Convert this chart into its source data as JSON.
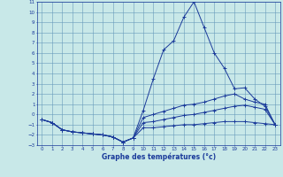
{
  "background_color": "#c8e8e8",
  "grid_color": "#6699bb",
  "line_color": "#1a3a9a",
  "xlabel": "Graphe des températures (°c)",
  "xlabel_color": "#1a3a9a",
  "xlim": [
    -0.5,
    23.5
  ],
  "ylim": [
    -3,
    11
  ],
  "xticks": [
    0,
    1,
    2,
    3,
    4,
    5,
    6,
    7,
    8,
    9,
    10,
    11,
    12,
    13,
    14,
    15,
    16,
    17,
    18,
    19,
    20,
    21,
    22,
    23
  ],
  "yticks": [
    -3,
    -2,
    -1,
    0,
    1,
    2,
    3,
    4,
    5,
    6,
    7,
    8,
    9,
    10,
    11
  ],
  "series": [
    {
      "x": [
        0,
        1,
        2,
        3,
        4,
        5,
        6,
        7,
        8,
        9,
        10,
        11,
        12,
        13,
        14,
        15,
        16,
        17,
        18,
        19,
        20,
        21,
        22,
        23
      ],
      "y": [
        -0.5,
        -0.8,
        -1.5,
        -1.7,
        -1.8,
        -1.9,
        -2.0,
        -2.2,
        -2.7,
        -2.3,
        0.4,
        3.5,
        6.3,
        7.2,
        9.5,
        11.0,
        8.5,
        6.0,
        4.5,
        2.5,
        2.6,
        1.5,
        0.8,
        -1.0
      ]
    },
    {
      "x": [
        0,
        1,
        2,
        3,
        4,
        5,
        6,
        7,
        8,
        9,
        10,
        11,
        12,
        13,
        14,
        15,
        16,
        17,
        18,
        19,
        20,
        21,
        22,
        23
      ],
      "y": [
        -0.5,
        -0.8,
        -1.5,
        -1.7,
        -1.8,
        -1.9,
        -2.0,
        -2.2,
        -2.7,
        -2.3,
        -0.3,
        0.0,
        0.3,
        0.6,
        0.9,
        1.0,
        1.2,
        1.5,
        1.8,
        2.0,
        1.5,
        1.2,
        1.0,
        -1.0
      ]
    },
    {
      "x": [
        0,
        1,
        2,
        3,
        4,
        5,
        6,
        7,
        8,
        9,
        10,
        11,
        12,
        13,
        14,
        15,
        16,
        17,
        18,
        19,
        20,
        21,
        22,
        23
      ],
      "y": [
        -0.5,
        -0.8,
        -1.5,
        -1.7,
        -1.8,
        -1.9,
        -2.0,
        -2.2,
        -2.7,
        -2.3,
        -0.8,
        -0.7,
        -0.5,
        -0.3,
        -0.1,
        0.0,
        0.2,
        0.4,
        0.6,
        0.8,
        0.9,
        0.7,
        0.5,
        -1.0
      ]
    },
    {
      "x": [
        0,
        1,
        2,
        3,
        4,
        5,
        6,
        7,
        8,
        9,
        10,
        11,
        12,
        13,
        14,
        15,
        16,
        17,
        18,
        19,
        20,
        21,
        22,
        23
      ],
      "y": [
        -0.5,
        -0.8,
        -1.5,
        -1.7,
        -1.8,
        -1.9,
        -2.0,
        -2.2,
        -2.7,
        -2.3,
        -1.3,
        -1.3,
        -1.2,
        -1.1,
        -1.0,
        -1.0,
        -0.9,
        -0.8,
        -0.7,
        -0.7,
        -0.7,
        -0.8,
        -0.9,
        -1.0
      ]
    }
  ]
}
